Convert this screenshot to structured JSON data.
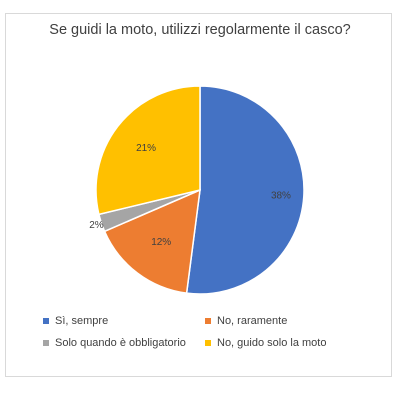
{
  "chart_data": {
    "type": "pie",
    "title": "Se guidi la moto, utilizzi regolarmente il casco?",
    "categories": [
      "Sì, sempre",
      "No, raramente",
      "Solo quando è obbligatorio",
      "No, guido solo la moto"
    ],
    "values": [
      38,
      12,
      2,
      21
    ],
    "labels": [
      "38%",
      "12%",
      "2%",
      "21%"
    ],
    "colors": [
      "#4472c4",
      "#ed7d31",
      "#a5a5a5",
      "#ffc000"
    ],
    "legend_position": "bottom"
  }
}
